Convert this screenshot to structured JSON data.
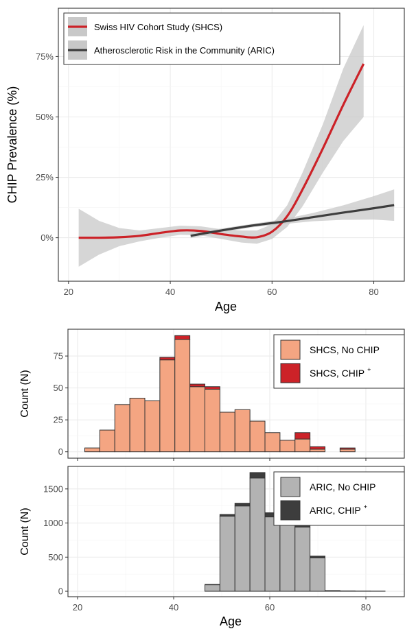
{
  "chart_data": [
    {
      "type": "line",
      "ylabel": "CHIP Prevalence (%)",
      "xlabel": "Age",
      "xlim": [
        18,
        86
      ],
      "ylim": [
        -0.18,
        0.95
      ],
      "x_ticks": [
        20,
        40,
        60,
        80
      ],
      "x_tick_labels": [
        "20",
        "40",
        "60",
        "80"
      ],
      "y_ticks": [
        0,
        0.25,
        0.5,
        0.75
      ],
      "y_tick_labels": [
        "0%",
        "25%",
        "50%",
        "75%"
      ],
      "grid": true,
      "legend_position": "top-left",
      "series": [
        {
          "name": "Swiss HIV Cohort Study (SHCS)",
          "color": "#cc2228",
          "ci_color": "#c8c8c8",
          "points": [
            {
              "x": 22,
              "y": 0.0,
              "lo": -0.12,
              "hi": 0.12
            },
            {
              "x": 26,
              "y": 0.0,
              "lo": -0.07,
              "hi": 0.07
            },
            {
              "x": 30,
              "y": 0.002,
              "lo": -0.035,
              "hi": 0.04
            },
            {
              "x": 34,
              "y": 0.008,
              "lo": -0.015,
              "hi": 0.03
            },
            {
              "x": 38,
              "y": 0.02,
              "lo": 0.0,
              "hi": 0.04
            },
            {
              "x": 42,
              "y": 0.03,
              "lo": 0.012,
              "hi": 0.05
            },
            {
              "x": 46,
              "y": 0.028,
              "lo": 0.01,
              "hi": 0.047
            },
            {
              "x": 50,
              "y": 0.015,
              "lo": -0.005,
              "hi": 0.035
            },
            {
              "x": 54,
              "y": 0.005,
              "lo": -0.02,
              "hi": 0.03
            },
            {
              "x": 57,
              "y": 0.002,
              "lo": -0.025,
              "hi": 0.03
            },
            {
              "x": 60,
              "y": 0.025,
              "lo": -0.005,
              "hi": 0.055
            },
            {
              "x": 63,
              "y": 0.09,
              "lo": 0.045,
              "hi": 0.135
            },
            {
              "x": 66,
              "y": 0.2,
              "lo": 0.13,
              "hi": 0.27
            },
            {
              "x": 70,
              "y": 0.37,
              "lo": 0.27,
              "hi": 0.47
            },
            {
              "x": 74,
              "y": 0.55,
              "lo": 0.4,
              "hi": 0.7
            },
            {
              "x": 78,
              "y": 0.72,
              "lo": 0.5,
              "hi": 0.88
            }
          ]
        },
        {
          "name": "Atherosclerotic Risk in the Community (ARIC)",
          "color": "#3d3d3d",
          "ci_color": "#c8c8c8",
          "points": [
            {
              "x": 44,
              "y": 0.008,
              "lo": -0.002,
              "hi": 0.018
            },
            {
              "x": 50,
              "y": 0.03,
              "lo": 0.022,
              "hi": 0.038
            },
            {
              "x": 56,
              "y": 0.05,
              "lo": 0.043,
              "hi": 0.057
            },
            {
              "x": 62,
              "y": 0.066,
              "lo": 0.056,
              "hi": 0.076
            },
            {
              "x": 68,
              "y": 0.085,
              "lo": 0.068,
              "hi": 0.102
            },
            {
              "x": 74,
              "y": 0.104,
              "lo": 0.074,
              "hi": 0.134
            },
            {
              "x": 80,
              "y": 0.122,
              "lo": 0.075,
              "hi": 0.172
            },
            {
              "x": 84,
              "y": 0.135,
              "lo": 0.07,
              "hi": 0.2
            }
          ]
        }
      ]
    },
    {
      "type": "bar",
      "ylabel": "Count (N)",
      "xlim": [
        18,
        88
      ],
      "ylim": [
        -5,
        96
      ],
      "y_ticks": [
        0,
        25,
        50,
        75
      ],
      "y_tick_labels": [
        "0",
        "25",
        "50",
        "75"
      ],
      "grid": true,
      "stacked": true,
      "legend_position": "top-right",
      "bin_start": 21.5,
      "bin_width": 3.125,
      "series": [
        {
          "name": "SHCS, No CHIP",
          "color": "#f4a582",
          "values": [
            3,
            17,
            37,
            42,
            40,
            72,
            88,
            51,
            49,
            31,
            33,
            24,
            15,
            9,
            10,
            2,
            0,
            2,
            0,
            0,
            0
          ]
        },
        {
          "name": "SHCS, CHIP",
          "name_suffix": "+",
          "color": "#cc2228",
          "values": [
            0,
            0,
            0,
            0,
            0,
            2,
            3,
            2,
            2,
            0,
            0,
            0,
            0,
            0,
            5,
            2,
            0,
            1,
            0,
            0,
            0
          ]
        }
      ]
    },
    {
      "type": "bar",
      "ylabel": "Count (N)",
      "xlabel": "Age",
      "xlim": [
        18,
        88
      ],
      "ylim": [
        -80,
        1830
      ],
      "x_ticks": [
        20,
        40,
        60,
        80
      ],
      "x_tick_labels": [
        "20",
        "40",
        "60",
        "80"
      ],
      "y_ticks": [
        0,
        500,
        1000,
        1500
      ],
      "y_tick_labels": [
        "0",
        "500",
        "1000",
        "1500"
      ],
      "grid": true,
      "stacked": true,
      "legend_position": "top-right",
      "bin_start": 21.5,
      "bin_width": 3.125,
      "series": [
        {
          "name": "ARIC, No CHIP",
          "color": "#b3b3b3",
          "values": [
            0,
            0,
            0,
            0,
            0,
            0,
            0,
            0,
            95,
            1100,
            1250,
            1660,
            1090,
            1080,
            940,
            490,
            0,
            0,
            0,
            0,
            0
          ]
        },
        {
          "name": "ARIC, CHIP",
          "name_suffix": "+",
          "color": "#3d3d3d",
          "values": [
            0,
            0,
            0,
            0,
            0,
            0,
            0,
            0,
            5,
            25,
            40,
            80,
            60,
            80,
            60,
            25,
            10,
            5,
            3,
            2,
            0
          ]
        }
      ]
    }
  ]
}
